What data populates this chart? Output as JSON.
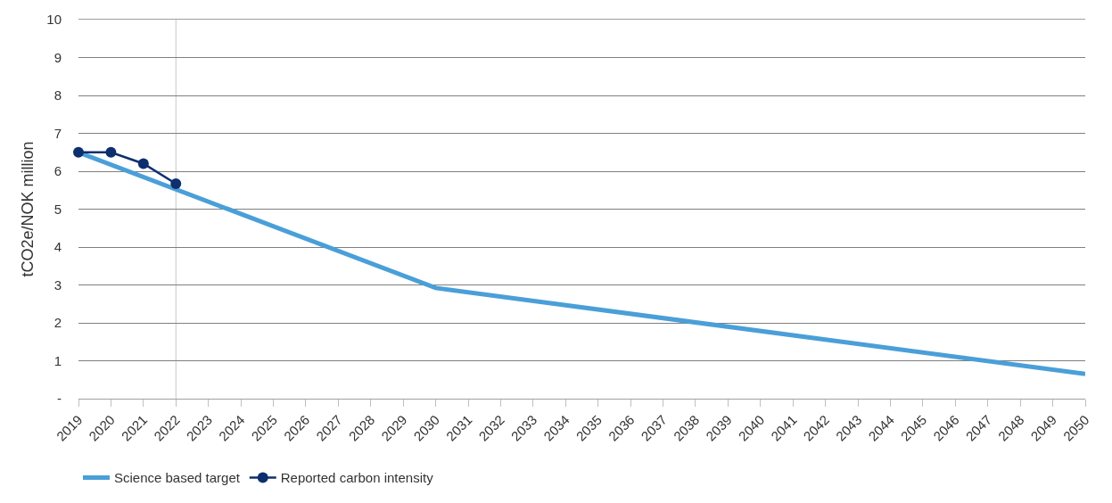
{
  "chart_data": {
    "type": "line",
    "ylabel": "tCO2e/NOK million",
    "series": [
      {
        "name": "Science based target",
        "color": "#4a9fd8",
        "x": [
          2019,
          2030,
          2050
        ],
        "values": [
          6.5,
          2.92,
          0.65
        ],
        "marker": "none"
      },
      {
        "name": "Reported carbon intensity",
        "color": "#0d2f6e",
        "x": [
          2019,
          2020,
          2021,
          2022
        ],
        "values": [
          6.5,
          6.5,
          6.2,
          5.67
        ],
        "marker": "circle"
      }
    ],
    "xlim": [
      2019,
      2050
    ],
    "xticks": [
      2019,
      2020,
      2021,
      2022,
      2023,
      2024,
      2025,
      2026,
      2027,
      2028,
      2029,
      2030,
      2031,
      2032,
      2033,
      2034,
      2035,
      2036,
      2037,
      2038,
      2039,
      2040,
      2041,
      2042,
      2043,
      2044,
      2045,
      2046,
      2047,
      2048,
      2049,
      2050
    ],
    "ylim": [
      0,
      10
    ],
    "yticks": [
      {
        "value": 0,
        "label": "-"
      },
      1,
      2,
      3,
      4,
      5,
      6,
      7,
      8,
      9,
      10
    ],
    "ref_lines": [
      {
        "axis": "x",
        "value": 2022,
        "color": "#c8c8c8"
      }
    ],
    "grid": "y",
    "legend": "bottom left"
  }
}
